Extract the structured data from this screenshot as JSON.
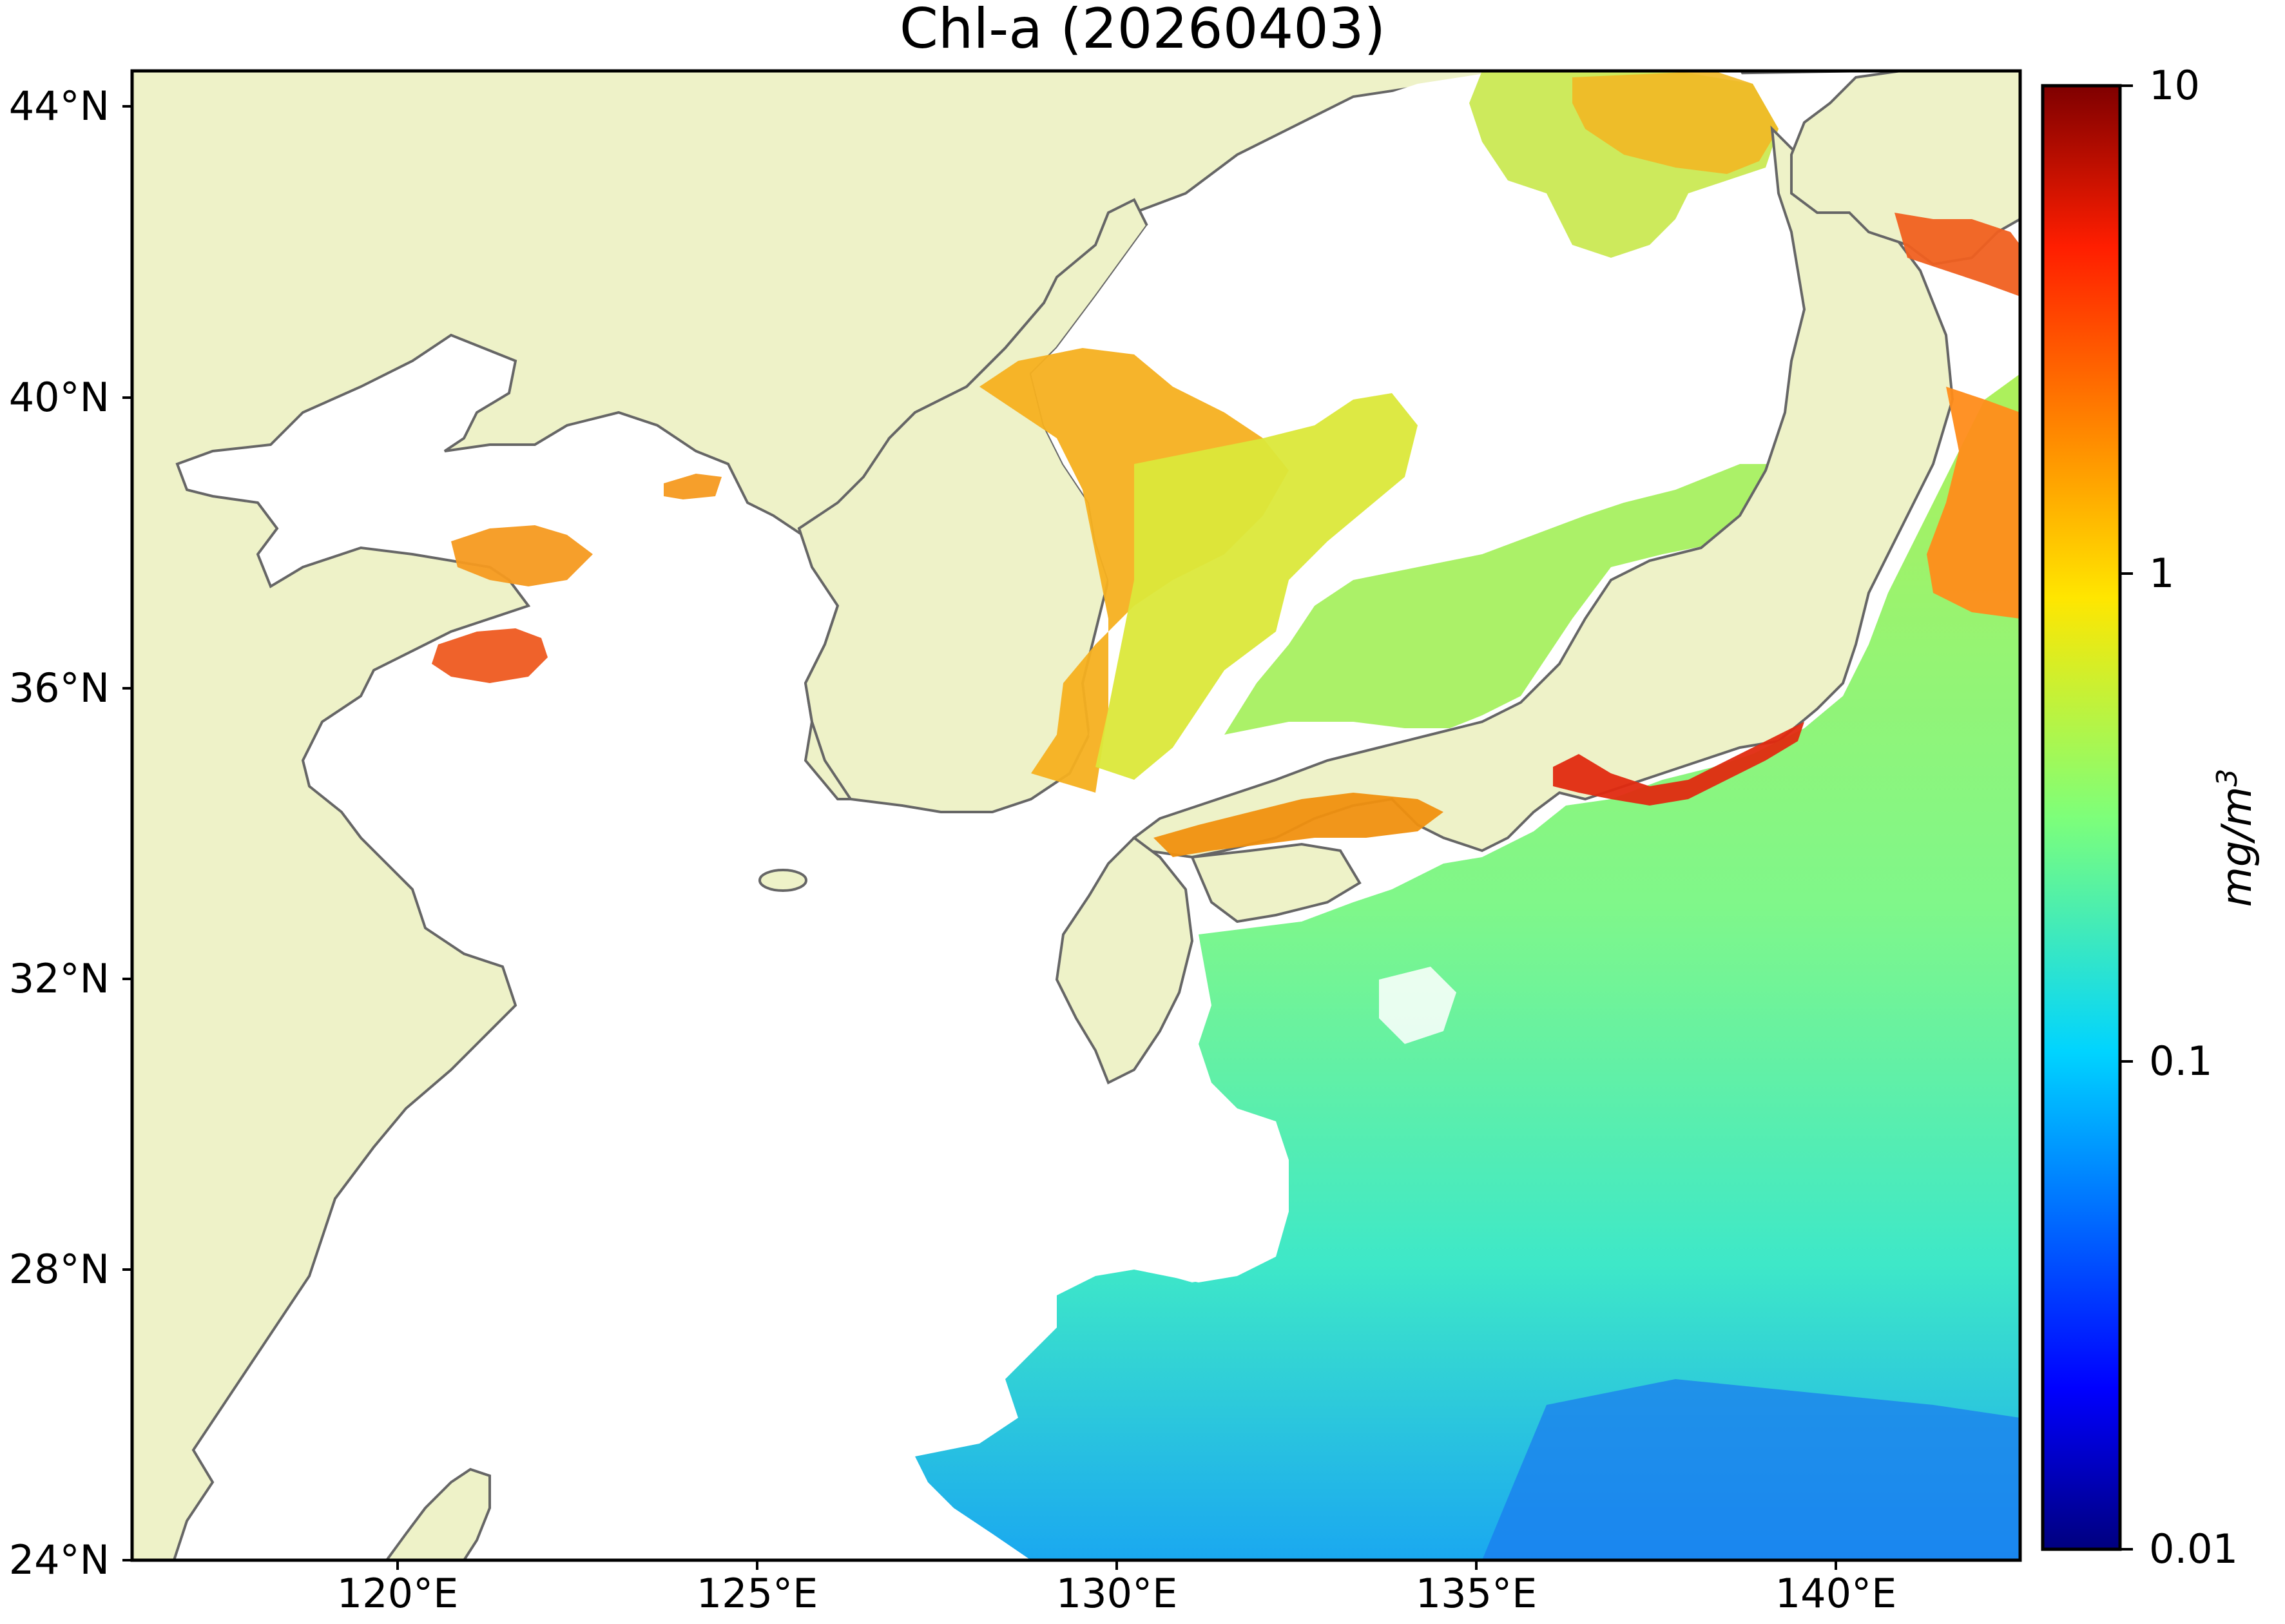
{
  "title": "Chl-a (20260403)",
  "y_ticks": [
    "44°N",
    "40°N",
    "36°N",
    "32°N",
    "28°N",
    "24°N"
  ],
  "x_ticks": [
    "120°E",
    "125°E",
    "130°E",
    "135°E",
    "140°E"
  ],
  "colorbar": {
    "ticks": [
      "10",
      "1",
      "0.1",
      "0.01"
    ],
    "label_base": "mg/m",
    "label_exp": "3",
    "scale": "log",
    "range": [
      0.01,
      10
    ],
    "colormap": "jet"
  },
  "colors": {
    "land": "#eef2c8",
    "coast": "#666666",
    "frame": "#000000"
  }
}
